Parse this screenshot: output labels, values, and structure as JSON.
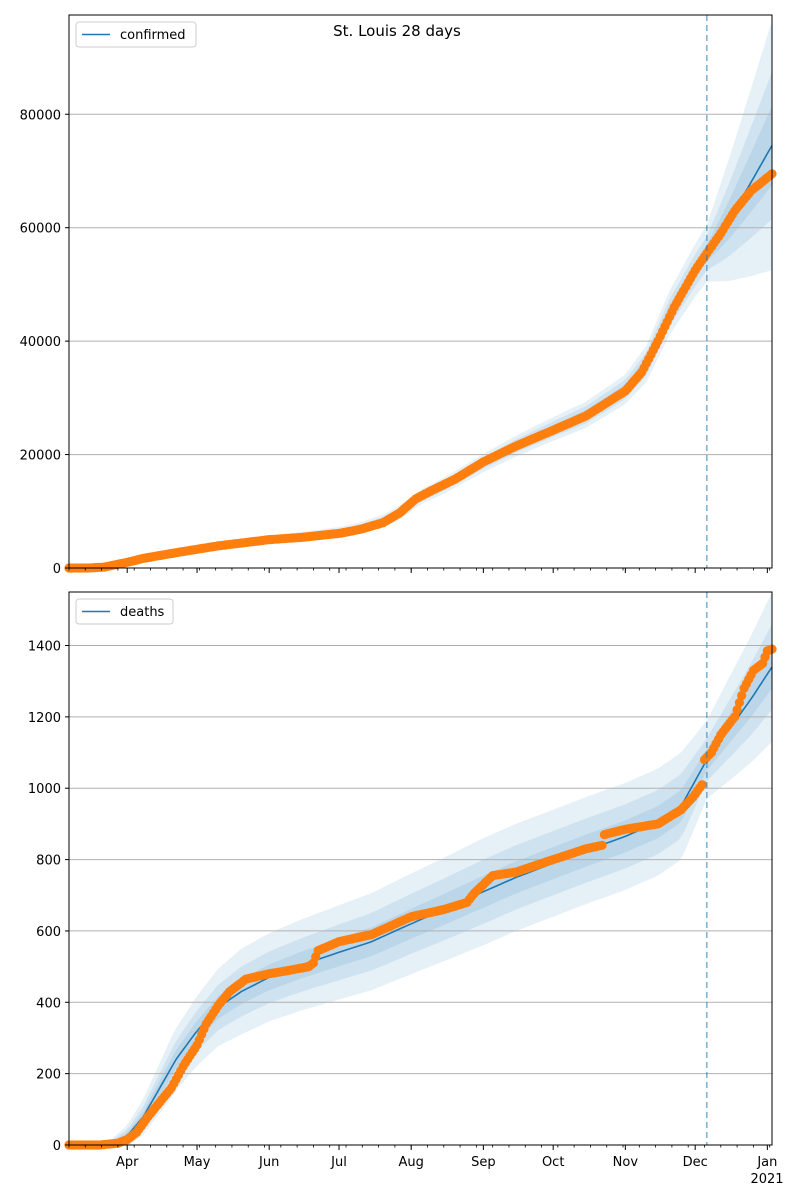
{
  "figure": {
    "title": "St. Louis 28 days"
  },
  "colors": {
    "model_line": "#1f77b4",
    "observed": "#ff7f0e",
    "band": "#1f77b4",
    "grid": "#b0b0b0",
    "divider": "#1f77b4"
  },
  "chart_data": [
    {
      "type": "line",
      "legend": [
        "confirmed"
      ],
      "legend_position": "top-left",
      "grid": "horizontal",
      "x_range": [
        "2020-03-07",
        "2021-01-03"
      ],
      "forecast_start": "2020-12-06",
      "ylim": [
        0,
        97500
      ],
      "yticks": [
        0,
        20000,
        40000,
        60000,
        80000
      ],
      "xticks_labeled": false,
      "model": {
        "name": "confirmed",
        "points": [
          [
            "2020-03-07",
            0
          ],
          [
            "2020-03-20",
            0
          ],
          [
            "2020-03-25",
            400
          ],
          [
            "2020-04-01",
            1000
          ],
          [
            "2020-04-10",
            1900
          ],
          [
            "2020-04-20",
            2600
          ],
          [
            "2020-05-01",
            3500
          ],
          [
            "2020-05-15",
            4300
          ],
          [
            "2020-06-01",
            5100
          ],
          [
            "2020-06-15",
            5600
          ],
          [
            "2020-07-01",
            6300
          ],
          [
            "2020-07-10",
            7000
          ],
          [
            "2020-07-20",
            8300
          ],
          [
            "2020-07-28",
            10000
          ],
          [
            "2020-08-05",
            12500
          ],
          [
            "2020-08-15",
            14500
          ],
          [
            "2020-09-01",
            18500
          ],
          [
            "2020-09-15",
            21500
          ],
          [
            "2020-10-01",
            24500
          ],
          [
            "2020-10-15",
            27000
          ],
          [
            "2020-11-01",
            31500
          ],
          [
            "2020-11-10",
            36000
          ],
          [
            "2020-11-20",
            45000
          ],
          [
            "2020-12-01",
            52500
          ],
          [
            "2020-12-06",
            55500
          ],
          [
            "2020-12-15",
            61000
          ],
          [
            "2020-12-25",
            68000
          ],
          [
            "2021-01-03",
            74500
          ]
        ]
      },
      "bands": {
        "widths": [
          [
            [
              "2020-03-07",
              0
            ],
            [
              "2020-06-01",
              150
            ],
            [
              "2020-09-01",
              500
            ],
            [
              "2020-11-01",
              900
            ],
            [
              "2020-12-06",
              1500
            ],
            [
              "2021-01-03",
              7000
            ]
          ],
          [
            [
              "2020-03-07",
              0
            ],
            [
              "2020-06-01",
              350
            ],
            [
              "2020-09-01",
              1000
            ],
            [
              "2020-11-01",
              1700
            ],
            [
              "2020-12-06",
              3000
            ],
            [
              "2021-01-03",
              13000
            ]
          ],
          [
            [
              "2020-03-07",
              0
            ],
            [
              "2020-06-01",
              600
            ],
            [
              "2020-09-01",
              1600
            ],
            [
              "2020-11-01",
              2600
            ],
            [
              "2020-12-06",
              5000
            ],
            [
              "2021-01-03",
              22000
            ]
          ]
        ]
      },
      "observed": {
        "name": "confirmed",
        "points": [
          [
            "2020-03-07",
            0
          ],
          [
            "2020-03-15",
            0
          ],
          [
            "2020-03-22",
            150
          ],
          [
            "2020-03-26",
            500
          ],
          [
            "2020-04-01",
            1000
          ],
          [
            "2020-04-08",
            1700
          ],
          [
            "2020-04-15",
            2200
          ],
          [
            "2020-04-22",
            2700
          ],
          [
            "2020-05-01",
            3300
          ],
          [
            "2020-05-10",
            3900
          ],
          [
            "2020-05-20",
            4400
          ],
          [
            "2020-06-01",
            5000
          ],
          [
            "2020-06-15",
            5400
          ],
          [
            "2020-07-01",
            6100
          ],
          [
            "2020-07-10",
            6800
          ],
          [
            "2020-07-20",
            8000
          ],
          [
            "2020-07-27",
            9700
          ],
          [
            "2020-08-03",
            12200
          ],
          [
            "2020-08-10",
            13700
          ],
          [
            "2020-08-20",
            15700
          ],
          [
            "2020-09-01",
            18700
          ],
          [
            "2020-09-15",
            21500
          ],
          [
            "2020-10-01",
            24300
          ],
          [
            "2020-10-15",
            26800
          ],
          [
            "2020-11-01",
            31200
          ],
          [
            "2020-11-08",
            34500
          ],
          [
            "2020-11-15",
            40000
          ],
          [
            "2020-11-22",
            46000
          ],
          [
            "2020-12-01",
            52500
          ],
          [
            "2020-12-06",
            55500
          ],
          [
            "2020-12-12",
            59000
          ],
          [
            "2020-12-18",
            63000
          ],
          [
            "2020-12-25",
            66500
          ],
          [
            "2021-01-03",
            69500
          ]
        ]
      }
    },
    {
      "type": "line",
      "legend": [
        "deaths"
      ],
      "legend_position": "top-left",
      "grid": "horizontal",
      "x_range": [
        "2020-03-07",
        "2021-01-03"
      ],
      "forecast_start": "2020-12-06",
      "ylim": [
        0,
        1550
      ],
      "yticks": [
        0,
        200,
        400,
        600,
        800,
        1000,
        1200,
        1400
      ],
      "xticks": [
        "Apr",
        "May",
        "Jun",
        "Jul",
        "Aug",
        "Sep",
        "Oct",
        "Nov",
        "Dec",
        "Jan"
      ],
      "xtick_dates": [
        "2020-04-01",
        "2020-05-01",
        "2020-06-01",
        "2020-07-01",
        "2020-08-01",
        "2020-09-01",
        "2020-10-01",
        "2020-11-01",
        "2020-12-01",
        "2021-01-01"
      ],
      "year_label": "2021",
      "model": {
        "name": "deaths",
        "points": [
          [
            "2020-03-07",
            0
          ],
          [
            "2020-03-25",
            5
          ],
          [
            "2020-04-01",
            25
          ],
          [
            "2020-04-08",
            80
          ],
          [
            "2020-04-15",
            160
          ],
          [
            "2020-04-22",
            240
          ],
          [
            "2020-05-01",
            320
          ],
          [
            "2020-05-10",
            385
          ],
          [
            "2020-05-20",
            430
          ],
          [
            "2020-06-01",
            470
          ],
          [
            "2020-06-15",
            505
          ],
          [
            "2020-07-01",
            540
          ],
          [
            "2020-07-15",
            570
          ],
          [
            "2020-08-01",
            620
          ],
          [
            "2020-08-15",
            660
          ],
          [
            "2020-09-01",
            710
          ],
          [
            "2020-09-15",
            750
          ],
          [
            "2020-10-01",
            790
          ],
          [
            "2020-10-15",
            825
          ],
          [
            "2020-11-01",
            865
          ],
          [
            "2020-11-15",
            905
          ],
          [
            "2020-11-25",
            950
          ],
          [
            "2020-12-06",
            1080
          ],
          [
            "2020-12-15",
            1160
          ],
          [
            "2020-12-25",
            1250
          ],
          [
            "2021-01-03",
            1340
          ]
        ]
      },
      "bands": {
        "widths": [
          [
            [
              "2020-03-07",
              0
            ],
            [
              "2020-03-25",
              3
            ],
            [
              "2020-04-20",
              25
            ],
            [
              "2020-05-20",
              35
            ],
            [
              "2020-09-01",
              45
            ],
            [
              "2020-11-25",
              45
            ],
            [
              "2020-12-06",
              30
            ],
            [
              "2021-01-03",
              60
            ]
          ],
          [
            [
              "2020-03-07",
              0
            ],
            [
              "2020-03-25",
              6
            ],
            [
              "2020-04-20",
              50
            ],
            [
              "2020-05-20",
              70
            ],
            [
              "2020-09-01",
              90
            ],
            [
              "2020-11-25",
              90
            ],
            [
              "2020-12-06",
              60
            ],
            [
              "2021-01-03",
              120
            ]
          ],
          [
            [
              "2020-03-07",
              0
            ],
            [
              "2020-03-25",
              10
            ],
            [
              "2020-04-20",
              85
            ],
            [
              "2020-05-20",
              120
            ],
            [
              "2020-09-01",
              150
            ],
            [
              "2020-11-25",
              150
            ],
            [
              "2020-12-06",
              110
            ],
            [
              "2021-01-03",
              210
            ]
          ]
        ]
      },
      "observed": {
        "name": "deaths",
        "points": [
          [
            "2020-03-07",
            0
          ],
          [
            "2020-03-20",
            0
          ],
          [
            "2020-03-28",
            5
          ],
          [
            "2020-04-01",
            15
          ],
          [
            "2020-04-05",
            35
          ],
          [
            "2020-04-10",
            80
          ],
          [
            "2020-04-15",
            120
          ],
          [
            "2020-04-20",
            160
          ],
          [
            "2020-04-25",
            220
          ],
          [
            "2020-05-01",
            280
          ],
          [
            "2020-05-05",
            340
          ],
          [
            "2020-05-10",
            390
          ],
          [
            "2020-05-15",
            430
          ],
          [
            "2020-05-22",
            465
          ],
          [
            "2020-06-01",
            480
          ],
          [
            "2020-06-10",
            490
          ],
          [
            "2020-06-18",
            500
          ],
          [
            "2020-06-20",
            510
          ],
          [
            "2020-06-22",
            545
          ],
          [
            "2020-07-01",
            570
          ],
          [
            "2020-07-15",
            590
          ],
          [
            "2020-08-01",
            640
          ],
          [
            "2020-08-15",
            660
          ],
          [
            "2020-08-25",
            680
          ],
          [
            "2020-08-28",
            705
          ],
          [
            "2020-09-01",
            730
          ],
          [
            "2020-09-05",
            755
          ],
          [
            "2020-09-15",
            765
          ],
          [
            "2020-10-01",
            800
          ],
          [
            "2020-10-15",
            830
          ],
          [
            "2020-10-22",
            840
          ],
          [
            "2020-10-23",
            870
          ],
          [
            "2020-11-01",
            885
          ],
          [
            "2020-11-15",
            900
          ],
          [
            "2020-11-25",
            940
          ],
          [
            "2020-11-30",
            975
          ],
          [
            "2020-12-04",
            1010
          ],
          [
            "2020-12-05",
            1080
          ],
          [
            "2020-12-08",
            1100
          ],
          [
            "2020-12-12",
            1150
          ],
          [
            "2020-12-18",
            1200
          ],
          [
            "2020-12-22",
            1280
          ],
          [
            "2020-12-26",
            1330
          ],
          [
            "2020-12-30",
            1350
          ],
          [
            "2021-01-01",
            1385
          ],
          [
            "2021-01-03",
            1390
          ]
        ]
      }
    }
  ]
}
